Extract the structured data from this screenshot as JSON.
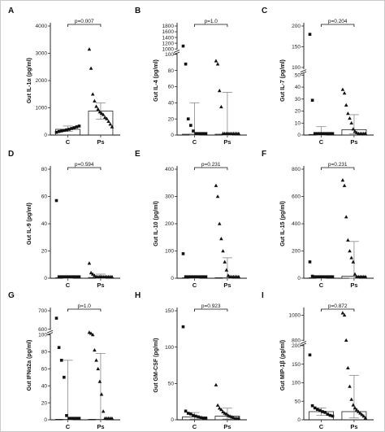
{
  "chart_data": [
    {
      "panel": "A",
      "type": "scatter",
      "categories": [
        "C",
        "Ps"
      ],
      "ylabel": "Gut IL-1α (pg/ml)",
      "ylim": [
        0,
        4000
      ],
      "yticks": [
        "0",
        "1000",
        "2000",
        "3000",
        "4000"
      ],
      "pvalue": "p=0.007",
      "series": [
        {
          "category": "C",
          "marker": "square",
          "bar": 210,
          "err": [
            130,
            330
          ],
          "points": [
            100,
            130,
            150,
            170,
            190,
            210,
            240,
            270,
            300,
            330
          ]
        },
        {
          "category": "Ps",
          "marker": "triangle",
          "bar": 880,
          "err": [
            580,
            1180
          ],
          "points": [
            3150,
            2450,
            1500,
            1250,
            1050,
            950,
            850,
            800,
            750,
            650,
            600,
            500,
            400,
            300
          ]
        }
      ]
    },
    {
      "panel": "B",
      "type": "scatter",
      "categories": [
        "C",
        "Ps"
      ],
      "ylabel": "Gut IL-4 (pg/ml)",
      "ylim": [
        0,
        1800
      ],
      "ybreak": true,
      "yticks": [
        "0",
        "20",
        "40",
        "60",
        "80",
        "100",
        "1000",
        "1200",
        "1400",
        "1600",
        "1800"
      ],
      "pvalue": "p=1.0",
      "series": [
        {
          "category": "C",
          "marker": "square",
          "bar": 1,
          "err": [
            0,
            40
          ],
          "points": [
            1100,
            88,
            20,
            12,
            5,
            0,
            0,
            0,
            0,
            0
          ]
        },
        {
          "category": "Ps",
          "marker": "triangle",
          "bar": 1,
          "err": [
            0,
            53
          ],
          "points": [
            92,
            88,
            55,
            35,
            2,
            0,
            0,
            0,
            0,
            0,
            0,
            0,
            0,
            0
          ]
        }
      ]
    },
    {
      "panel": "C",
      "type": "scatter",
      "categories": [
        "C",
        "Ps"
      ],
      "ylabel": "Gut IL-7 (pg/ml)",
      "ylim": [
        0,
        200
      ],
      "ybreak": true,
      "yticks": [
        "0",
        "10",
        "20",
        "30",
        "40",
        "50",
        "100",
        "150",
        "200"
      ],
      "pvalue": "p=0.204",
      "series": [
        {
          "category": "C",
          "marker": "square",
          "bar": 0.5,
          "err": [
            0,
            7
          ],
          "points": [
            180,
            29,
            0,
            0,
            0,
            0,
            0,
            0,
            0,
            0
          ]
        },
        {
          "category": "Ps",
          "marker": "triangle",
          "bar": 4.5,
          "err": [
            1,
            17
          ],
          "points": [
            38,
            35,
            25,
            18,
            14,
            10,
            5,
            3,
            2,
            1,
            1,
            0,
            0,
            0
          ]
        }
      ]
    },
    {
      "panel": "D",
      "type": "scatter",
      "categories": [
        "C",
        "Ps"
      ],
      "ylabel": "Gut IL-9 (pg/ml)",
      "ylim": [
        0,
        80
      ],
      "yticks": [
        "0",
        "20",
        "40",
        "60",
        "80"
      ],
      "pvalue": "p=0.594",
      "series": [
        {
          "category": "C",
          "marker": "square",
          "bar": 0,
          "err": [
            0,
            0
          ],
          "points": [
            57,
            0,
            0,
            0,
            0,
            0,
            0,
            0,
            0,
            0
          ]
        },
        {
          "category": "Ps",
          "marker": "triangle",
          "bar": 0.5,
          "err": [
            0,
            3
          ],
          "points": [
            11,
            4,
            3,
            2,
            1,
            0,
            0,
            0,
            0,
            0,
            0,
            0,
            0,
            0
          ]
        }
      ]
    },
    {
      "panel": "E",
      "type": "scatter",
      "categories": [
        "C",
        "Ps"
      ],
      "ylabel": "Gut IL-10 (pg/ml)",
      "ylim": [
        0,
        400
      ],
      "yticks": [
        "0",
        "100",
        "200",
        "300",
        "400"
      ],
      "pvalue": "p=0.231",
      "series": [
        {
          "category": "C",
          "marker": "square",
          "bar": 0,
          "err": [
            0,
            0
          ],
          "points": [
            90,
            0,
            0,
            0,
            0,
            0,
            0,
            0,
            0,
            0
          ]
        },
        {
          "category": "Ps",
          "marker": "triangle",
          "bar": 2,
          "err": [
            0,
            75
          ],
          "points": [
            340,
            300,
            200,
            145,
            100,
            60,
            30,
            10,
            0,
            0,
            0,
            0,
            0,
            0
          ]
        }
      ]
    },
    {
      "panel": "F",
      "type": "scatter",
      "categories": [
        "C",
        "Ps"
      ],
      "ylabel": "Gut IL-15 (pg/ml)",
      "ylim": [
        0,
        800
      ],
      "yticks": [
        "0",
        "200",
        "400",
        "600",
        "800"
      ],
      "pvalue": "p=0.231",
      "series": [
        {
          "category": "C",
          "marker": "square",
          "bar": 1,
          "err": [
            0,
            8
          ],
          "points": [
            120,
            15,
            10,
            5,
            2,
            0,
            0,
            0,
            0,
            0
          ]
        },
        {
          "category": "Ps",
          "marker": "triangle",
          "bar": 15,
          "err": [
            0,
            270
          ],
          "points": [
            720,
            680,
            450,
            280,
            200,
            150,
            120,
            30,
            10,
            5,
            0,
            0,
            0,
            0
          ]
        }
      ]
    },
    {
      "panel": "G",
      "type": "scatter",
      "categories": [
        "C",
        "Ps"
      ],
      "ylabel": "Gut IFNα2a (pg/ml)",
      "ylim": [
        0,
        700
      ],
      "ybreak": true,
      "yticks": [
        "0",
        "20",
        "40",
        "60",
        "80",
        "100",
        "600",
        "700"
      ],
      "pvalue": "p=1.0",
      "series": [
        {
          "category": "C",
          "marker": "square",
          "bar": 0,
          "err": [
            0,
            70
          ],
          "points": [
            660,
            85,
            70,
            50,
            5,
            0,
            0,
            0,
            0,
            0
          ]
        },
        {
          "category": "Ps",
          "marker": "triangle",
          "bar": 0,
          "err": [
            0,
            78
          ],
          "points": [
            320,
            230,
            100,
            82,
            70,
            60,
            45,
            30,
            10,
            0,
            0,
            0,
            0,
            0
          ]
        }
      ]
    },
    {
      "panel": "H",
      "type": "scatter",
      "categories": [
        "C",
        "Ps"
      ],
      "ylabel": "Gut GM-CSF (pg/ml)",
      "ylim": [
        0,
        150
      ],
      "yticks": [
        "0",
        "50",
        "100",
        "150"
      ],
      "pvalue": "p=0.923",
      "series": [
        {
          "category": "C",
          "marker": "square",
          "bar": 4,
          "err": [
            1,
            10
          ],
          "points": [
            128,
            12,
            9,
            8,
            6,
            5,
            4,
            3,
            2,
            1
          ]
        },
        {
          "category": "Ps",
          "marker": "triangle",
          "bar": 5,
          "err": [
            1,
            16
          ],
          "points": [
            48,
            20,
            16,
            14,
            11,
            9,
            8,
            6,
            5,
            4,
            3,
            2,
            1,
            0
          ]
        }
      ]
    },
    {
      "panel": "I",
      "type": "scatter",
      "categories": [
        "C",
        "Ps"
      ],
      "ylabel": "Gut MIP-1β (pg/ml)",
      "ylim": [
        0,
        1000
      ],
      "ybreak": true,
      "yticks": [
        "0",
        "50",
        "100",
        "150",
        "200",
        "800",
        "1000"
      ],
      "pvalue": "p=0.872",
      "series": [
        {
          "category": "C",
          "marker": "square",
          "bar": 22,
          "err": [
            12,
            32
          ],
          "points": [
            175,
            38,
            32,
            28,
            25,
            22,
            20,
            15,
            12,
            10
          ]
        },
        {
          "category": "Ps",
          "marker": "triangle",
          "bar": 22,
          "err": [
            5,
            120
          ],
          "points": [
            1050,
            1000,
            800,
            140,
            90,
            55,
            40,
            32,
            27,
            22,
            18,
            14,
            10,
            5
          ]
        }
      ]
    }
  ],
  "panels_layout": [
    {
      "scale": [
        [
          0,
          0
        ],
        [
          4000,
          1
        ]
      ]
    },
    {
      "scale": [
        [
          0,
          0
        ],
        [
          100,
          0.74
        ],
        [
          1000,
          0.79
        ],
        [
          1800,
          1
        ]
      ]
    },
    {
      "scale": [
        [
          0,
          0
        ],
        [
          50,
          0.55
        ],
        [
          100,
          0.62
        ],
        [
          200,
          1
        ]
      ]
    },
    {
      "scale": [
        [
          0,
          0
        ],
        [
          80,
          1
        ]
      ]
    },
    {
      "scale": [
        [
          0,
          0
        ],
        [
          400,
          1
        ]
      ]
    },
    {
      "scale": [
        [
          0,
          0
        ],
        [
          800,
          1
        ]
      ]
    },
    {
      "scale": [
        [
          0,
          0
        ],
        [
          100,
          0.78
        ],
        [
          600,
          0.83
        ],
        [
          700,
          1
        ]
      ]
    },
    {
      "scale": [
        [
          0,
          0
        ],
        [
          150,
          1
        ]
      ]
    },
    {
      "scale": [
        [
          0,
          0
        ],
        [
          200,
          0.68
        ],
        [
          800,
          0.73
        ],
        [
          1000,
          0.96
        ],
        [
          1100,
          1
        ]
      ]
    }
  ]
}
